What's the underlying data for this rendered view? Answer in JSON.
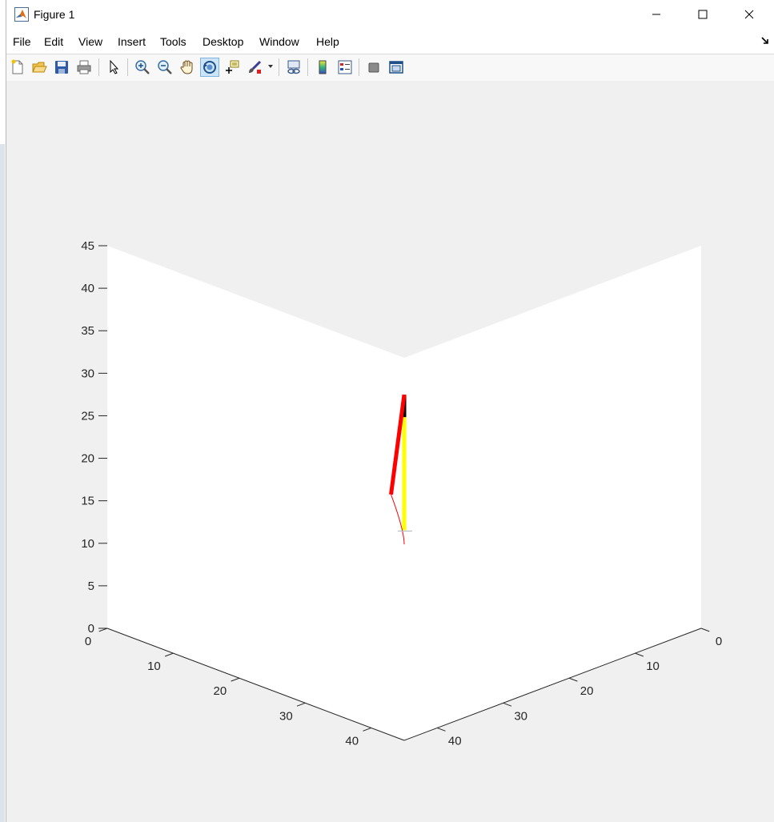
{
  "window": {
    "title": "Figure 1",
    "icon": "matlab-icon",
    "controls": [
      "minimize-icon",
      "maximize-icon",
      "close-icon"
    ]
  },
  "menu": {
    "items": [
      "File",
      "Edit",
      "View",
      "Insert",
      "Tools",
      "Desktop",
      "Window",
      "Help"
    ],
    "dock_icon": "dock-arrow-icon"
  },
  "toolbar": {
    "buttons": [
      "new-figure-icon",
      "open-file-icon",
      "save-icon",
      "print-icon",
      "edit-plot-icon",
      "zoom-in-icon",
      "zoom-out-icon",
      "pan-icon",
      "rotate-3d-icon",
      "data-cursor-icon",
      "brush-icon",
      "link-plot-icon",
      "colorbar-icon",
      "legend-icon",
      "hide-plot-tools-icon",
      "show-plot-tools-icon"
    ],
    "active": "rotate-3d-icon"
  },
  "chart_data": {
    "type": "line",
    "projection": "3d",
    "title": "",
    "xlabel": "",
    "ylabel": "",
    "zlabel": "",
    "xlim": [
      0,
      45
    ],
    "ylim": [
      0,
      45
    ],
    "zlim": [
      0,
      45
    ],
    "x_ticks": [
      "0",
      "10",
      "20",
      "30",
      "40"
    ],
    "y_ticks": [
      "0",
      "10",
      "20",
      "30",
      "40"
    ],
    "z_ticks": [
      "0",
      "5",
      "10",
      "15",
      "20",
      "25",
      "30",
      "35",
      "40",
      "45"
    ],
    "series": [
      {
        "color": "#ffff00",
        "width": 5,
        "points": [
          [
            20,
            20,
            13
          ],
          [
            20,
            20,
            26.3
          ]
        ]
      },
      {
        "color": "#000000",
        "width": 5,
        "points": [
          [
            20,
            20,
            26.3
          ],
          [
            18.2,
            18.2,
            30
          ]
        ]
      },
      {
        "color": "#ff0000",
        "width": 5,
        "points": [
          [
            18.2,
            18.2,
            30
          ],
          [
            20.5,
            18.5,
            17.5
          ]
        ]
      },
      {
        "color": "#ff0000",
        "width": 1,
        "points": [
          [
            20.5,
            18.5,
            17.5
          ],
          [
            20,
            20,
            13
          ],
          [
            24,
            24,
            9
          ]
        ]
      }
    ]
  }
}
